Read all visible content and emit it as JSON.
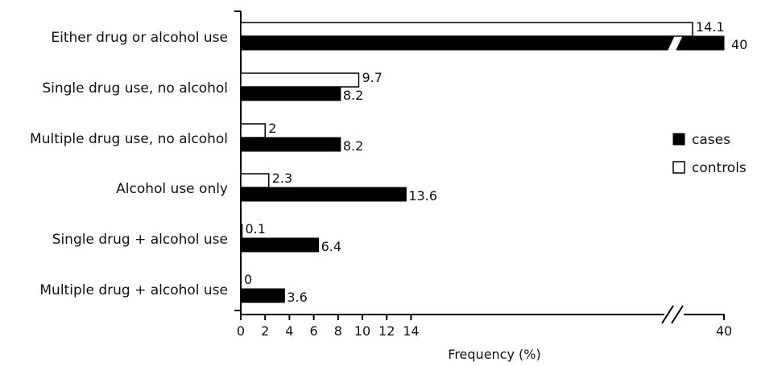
{
  "chart_data": {
    "type": "bar",
    "orientation": "horizontal",
    "categories": [
      "Either drug or alcohol use",
      "Single drug use, no alcohol",
      "Multiple drug use, no alcohol",
      "Alcohol use only",
      "Single drug + alcohol use",
      "Multiple drug + alcohol use"
    ],
    "series": [
      {
        "name": "controls",
        "values": [
          14.1,
          9.7,
          2,
          2.3,
          0.1,
          0
        ],
        "labels": [
          "14.1",
          "9.7",
          "2",
          "2.3",
          "0.1",
          "0"
        ],
        "color": "#ffffff"
      },
      {
        "name": "cases",
        "values": [
          40,
          8.2,
          8.2,
          13.6,
          6.4,
          3.6
        ],
        "labels": [
          "40",
          "8.2",
          "8.2",
          "13.6",
          "6.4",
          "3.6"
        ],
        "color": "#000000"
      }
    ],
    "title": "",
    "xlabel": "Frequency (%)",
    "ylabel": "",
    "xticks": [
      "0",
      "2",
      "4",
      "6",
      "8",
      "10",
      "12",
      "14",
      "40"
    ],
    "xlim": [
      0,
      40
    ],
    "axis_break": [
      14,
      40
    ],
    "grid": false,
    "legend_position": "right"
  }
}
